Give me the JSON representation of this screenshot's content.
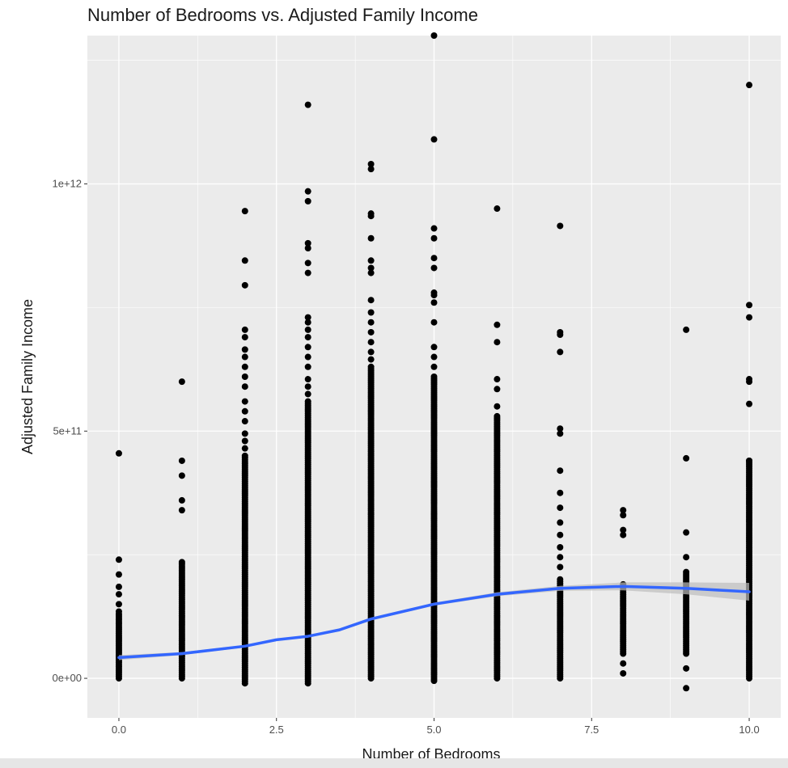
{
  "chart_data": {
    "type": "scatter",
    "title": "Number of Bedrooms vs. Adjusted Family Income",
    "xlabel": "Number of Bedrooms",
    "ylabel": "Adjusted Family Income",
    "xlim": [
      -0.5,
      10.5
    ],
    "ylim": [
      -80000000000,
      1300000000000
    ],
    "x_ticks": [
      0.0,
      2.5,
      5.0,
      7.5,
      10.0
    ],
    "x_tick_labels": [
      "0.0",
      "2.5",
      "5.0",
      "7.5",
      "10.0"
    ],
    "y_ticks": [
      0,
      500000000000,
      1000000000000
    ],
    "y_tick_labels": [
      "0e+00",
      "5e+11",
      "1e+12"
    ],
    "grid": true,
    "colors": {
      "panel_background": "#ebebeb",
      "grid": "#ffffff",
      "points": "#000000",
      "smooth_line": "#3366ff",
      "confidence_band": "#bdbdbd"
    },
    "series": [
      {
        "type": "scatter",
        "groups": [
          {
            "x": 0,
            "dense_range": [
              0,
              130000000000
            ],
            "outliers": [
              455000000000,
              240000000000,
              210000000000,
              185000000000,
              170000000000,
              150000000000,
              135000000000
            ]
          },
          {
            "x": 1,
            "dense_range": [
              0,
              235000000000
            ],
            "outliers": [
              600000000000,
              440000000000,
              410000000000,
              360000000000,
              340000000000
            ]
          },
          {
            "x": 2,
            "dense_range": [
              -10000000000,
              450000000000
            ],
            "outliers": [
              945000000000,
              845000000000,
              795000000000,
              705000000000,
              690000000000,
              665000000000,
              650000000000,
              630000000000,
              610000000000,
              590000000000,
              560000000000,
              540000000000,
              520000000000,
              495000000000,
              480000000000,
              465000000000
            ]
          },
          {
            "x": 3,
            "dense_range": [
              -10000000000,
              560000000000
            ],
            "outliers": [
              1160000000000,
              985000000000,
              965000000000,
              880000000000,
              870000000000,
              840000000000,
              820000000000,
              730000000000,
              720000000000,
              705000000000,
              690000000000,
              670000000000,
              650000000000,
              630000000000,
              605000000000,
              590000000000,
              575000000000
            ]
          },
          {
            "x": 4,
            "dense_range": [
              0,
              630000000000
            ],
            "outliers": [
              1040000000000,
              1030000000000,
              940000000000,
              935000000000,
              890000000000,
              845000000000,
              830000000000,
              820000000000,
              765000000000,
              740000000000,
              720000000000,
              700000000000,
              680000000000,
              660000000000,
              645000000000
            ]
          },
          {
            "x": 5,
            "dense_range": [
              -5000000000,
              610000000000
            ],
            "outliers": [
              1300000000000,
              1090000000000,
              910000000000,
              890000000000,
              850000000000,
              830000000000,
              780000000000,
              775000000000,
              760000000000,
              720000000000,
              670000000000,
              650000000000,
              630000000000
            ]
          },
          {
            "x": 6,
            "dense_range": [
              0,
              530000000000
            ],
            "outliers": [
              950000000000,
              715000000000,
              680000000000,
              605000000000,
              585000000000,
              550000000000
            ]
          },
          {
            "x": 7,
            "dense_range": [
              0,
              200000000000
            ],
            "outliers": [
              915000000000,
              700000000000,
              695000000000,
              660000000000,
              505000000000,
              495000000000,
              420000000000,
              375000000000,
              345000000000,
              315000000000,
              290000000000,
              265000000000,
              245000000000,
              225000000000
            ]
          },
          {
            "x": 8,
            "dense_range": [
              50000000000,
              190000000000
            ],
            "outliers": [
              340000000000,
              330000000000,
              300000000000,
              290000000000,
              30000000000,
              10000000000
            ]
          },
          {
            "x": 9,
            "dense_range": [
              50000000000,
              215000000000
            ],
            "outliers": [
              705000000000,
              445000000000,
              295000000000,
              245000000000,
              20000000000,
              -20000000000
            ]
          },
          {
            "x": 10,
            "dense_range": [
              0,
              440000000000
            ],
            "outliers": [
              1200000000000,
              755000000000,
              730000000000,
              605000000000,
              600000000000,
              555000000000,
              440000000000
            ]
          }
        ]
      },
      {
        "type": "smooth",
        "x": [
          0,
          1,
          2,
          2.5,
          3,
          3.5,
          4,
          5,
          6,
          7,
          8,
          9,
          10
        ],
        "y": [
          42000000000,
          50000000000,
          65000000000,
          78000000000,
          85000000000,
          98000000000,
          120000000000,
          150000000000,
          170000000000,
          182000000000,
          186000000000,
          182000000000,
          175000000000
        ],
        "ci_halfwidth": [
          5000000000,
          3000000000,
          2500000000,
          2500000000,
          2500000000,
          3000000000,
          3000000000,
          3000000000,
          4000000000,
          5000000000,
          8000000000,
          12000000000,
          18000000000
        ]
      }
    ]
  }
}
